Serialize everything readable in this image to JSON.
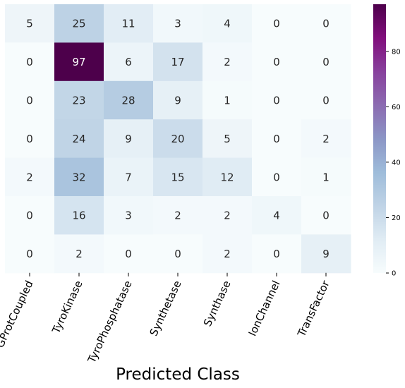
{
  "chart_data": {
    "type": "heatmap",
    "title": "",
    "xlabel": "Predicted Class",
    "ylabel": "",
    "categories": [
      "GProtCoupled",
      "TyroKinase",
      "TyroPhosphatase",
      "Synthetase",
      "Synthase",
      "IonChannel",
      "TransFactor"
    ],
    "matrix": [
      [
        5,
        25,
        11,
        3,
        4,
        0,
        0
      ],
      [
        0,
        97,
        6,
        17,
        2,
        0,
        0
      ],
      [
        0,
        23,
        28,
        9,
        1,
        0,
        0
      ],
      [
        0,
        24,
        9,
        20,
        5,
        0,
        2
      ],
      [
        2,
        32,
        7,
        15,
        12,
        0,
        1
      ],
      [
        0,
        16,
        3,
        2,
        2,
        4,
        0
      ],
      [
        0,
        2,
        0,
        0,
        2,
        0,
        9
      ]
    ],
    "colorbar": {
      "range": [
        0,
        97
      ],
      "ticks": [
        0,
        20,
        40,
        60,
        80
      ],
      "colormap": "BuPu",
      "stops": [
        "#f7fcfd",
        "#e0ecf4",
        "#bfd3e6",
        "#9ebcda",
        "#8c96c6",
        "#8c6bb1",
        "#88419d",
        "#810f7c",
        "#4d004b"
      ]
    },
    "grid": false,
    "legend": "colorbar-right"
  }
}
